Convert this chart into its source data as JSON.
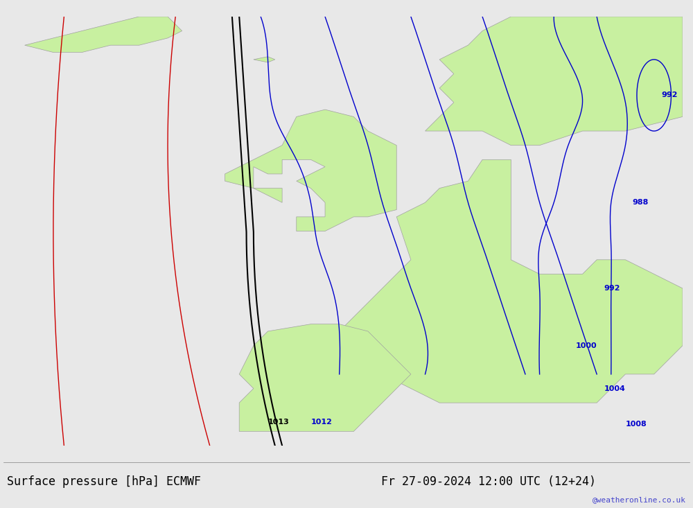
{
  "title_left": "Surface pressure [hPa] ECMWF",
  "title_right": "Fr 27-09-2024 12:00 UTC (12+24)",
  "watermark": "@weatheronline.co.uk",
  "figsize": [
    10.0,
    7.33
  ],
  "dpi": 100,
  "bg_color": "#e8e8e8",
  "land_color": "#c8f0a0",
  "sea_color": "#e8e8e8",
  "border_color": "#a0a0a0",
  "isobar_blue_color": "#0000cc",
  "isobar_black_color": "#000000",
  "isobar_red_color": "#cc0000",
  "title_fontsize": 12,
  "label_fontsize": 10,
  "watermark_fontsize": 8,
  "watermark_color": "#4444cc"
}
